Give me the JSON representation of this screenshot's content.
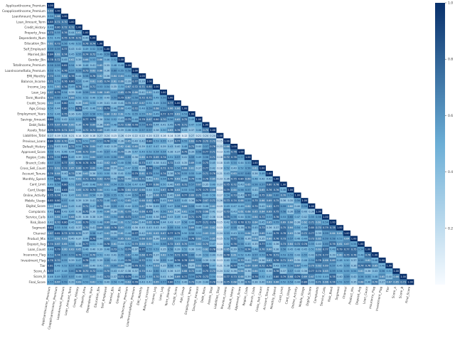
{
  "chart_data": {
    "type": "heatmap",
    "subtype": "lower-triangle correlation matrix",
    "n_variables": 52,
    "variables": [
      "ApplicantIncome_Premium",
      "CoapplicantIncome_Premium",
      "LoanAmount_Premium",
      "Loan_Amount_Term",
      "Credit_History",
      "Property_Area",
      "Dependents_Num",
      "Education_Bin",
      "Self_Employed",
      "Married_Bin",
      "Gender_Bin",
      "TotalIncome_Premium",
      "LoanIncomeRatio_Premium",
      "EMI_Monthly",
      "Balance_Income",
      "Income_Log",
      "Loan_Log",
      "Term_Months",
      "Credit_Score",
      "Age_Group",
      "Employment_Years",
      "Savings_Amount",
      "Debt_Ratio",
      "Assets_Total",
      "Liabilities_Total",
      "Previous_Loans",
      "Default_History",
      "Approved_Score",
      "Region_Code",
      "Branch_Code",
      "Cross_Sell_Count",
      "Account_Tenure",
      "Monthly_Spend",
      "Card_Limit",
      "Card_Usage",
      "Online_Activity",
      "Mobile_Usage",
      "Digital_Score",
      "Complaints",
      "Service_Calls",
      "Risk_Band",
      "Segment",
      "Channel",
      "Product_Mix",
      "Deposit_Avg",
      "Loan_Count",
      "Insurance_Flag",
      "Investment_Flag",
      "Tier",
      "Score_A",
      "Score_B",
      "Final_Score"
    ],
    "value_range": [
      0,
      1
    ],
    "colorbar": {
      "ticks": [
        0.2,
        0.4,
        0.6,
        0.8,
        1.0
      ],
      "tick_labels": [
        "0.2",
        "0.4",
        "0.6",
        "0.8",
        "1.0"
      ]
    },
    "colors": {
      "low": "#f7fbff",
      "mid": "#6baed6",
      "high": "#08306b"
    },
    "annotated": true,
    "annotation_decimals": 2
  }
}
